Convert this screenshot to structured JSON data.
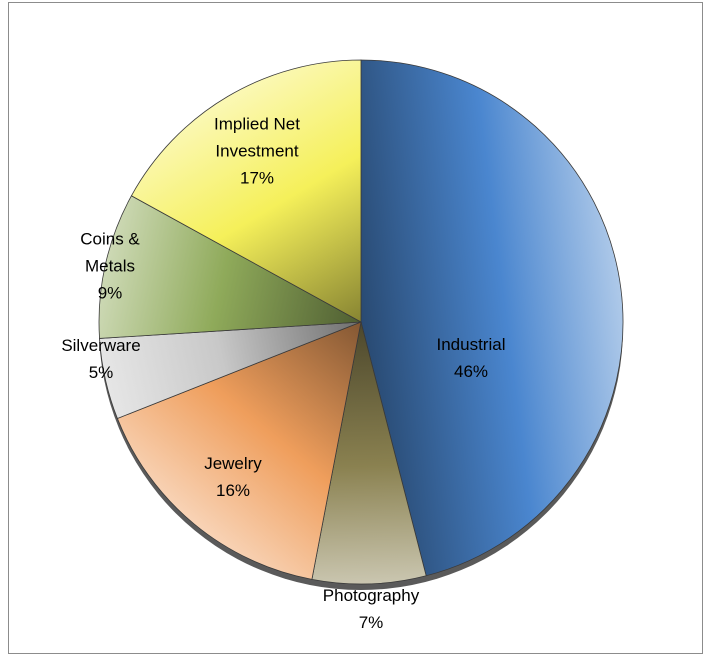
{
  "chart_data": {
    "type": "pie",
    "title": "",
    "slices": [
      {
        "name": "Industrial",
        "value": 46,
        "value_label": "46%",
        "color": "#4a86cf"
      },
      {
        "name": "Photography",
        "value": 7,
        "value_label": "7%",
        "color": "#8a8150"
      },
      {
        "name": "Jewelry",
        "value": 16,
        "value_label": "16%",
        "color": "#ef9e5c"
      },
      {
        "name": "Silverware",
        "value": 5,
        "value_label": "5%",
        "color": "#c8c8c8"
      },
      {
        "name": "Coins & Metals",
        "value": 9,
        "value_label": "9%",
        "color": "#8faa5a"
      },
      {
        "name": "Implied Net Investment",
        "value": 17,
        "value_label": "17%",
        "color": "#f5f05a"
      }
    ]
  }
}
